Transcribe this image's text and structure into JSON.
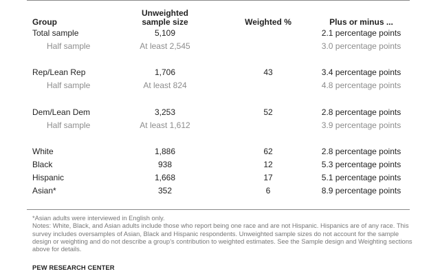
{
  "headers": {
    "group": "Group",
    "size": "Unweighted sample size",
    "weighted": "Weighted %",
    "margin": "Plus or minus ..."
  },
  "rows": [
    {
      "group": "Total sample",
      "size": "5,109",
      "weighted": "",
      "margin": "2.1 percentage points",
      "sub": false
    },
    {
      "group": "Half sample",
      "size": "At least 2,545",
      "weighted": "",
      "margin": "3.0 percentage points",
      "sub": true
    },
    {
      "group": "Rep/Lean Rep",
      "size": "1,706",
      "weighted": "43",
      "margin": "3.4 percentage points",
      "sub": false
    },
    {
      "group": "Half sample",
      "size": "At least 824",
      "weighted": "",
      "margin": "4.8 percentage points",
      "sub": true
    },
    {
      "group": "Dem/Lean Dem",
      "size": "3,253",
      "weighted": "52",
      "margin": "2.8 percentage points",
      "sub": false
    },
    {
      "group": "Half sample",
      "size": "At least 1,612",
      "weighted": "",
      "margin": "3.9 percentage points",
      "sub": true
    },
    {
      "group": "White",
      "size": "1,886",
      "weighted": "62",
      "margin": "2.8 percentage points",
      "sub": false
    },
    {
      "group": "Black",
      "size": "938",
      "weighted": "12",
      "margin": "5.3 percentage points",
      "sub": false
    },
    {
      "group": "Hispanic",
      "size": "1,668",
      "weighted": "17",
      "margin": "5.1 percentage points",
      "sub": false
    },
    {
      "group": "Asian*",
      "size": "352",
      "weighted": "6",
      "margin": "8.9 percentage points",
      "sub": false
    }
  ],
  "notes": {
    "asterisk": "*Asian adults were interviewed in English only.",
    "text": "Notes: White, Black, and Asian adults include those who report being one race and are not Hispanic. Hispanics are of any race. This survey includes oversamples of Asian, Black and Hispanic respondents. Unweighted sample sizes do not account for the sample design or weighting and do not describe a group’s contribution to weighted estimates. See the Sample design and Weighting sections above for details."
  },
  "footer": "PEW RESEARCH CENTER"
}
